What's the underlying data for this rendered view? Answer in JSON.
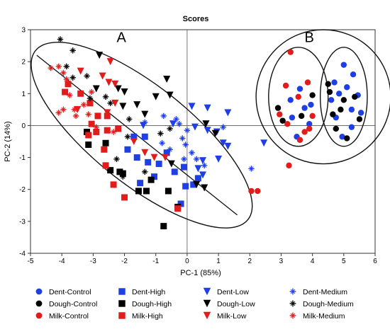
{
  "chart_data": {
    "type": "scatter",
    "title": "Scores",
    "xlabel": "PC-1 (85%)",
    "ylabel": "PC-2 (14%)",
    "xlim": [
      -5,
      6
    ],
    "ylim": [
      -4,
      3
    ],
    "xticks": [
      -5,
      -4,
      -3,
      -2,
      -1,
      0,
      1,
      2,
      3,
      4,
      5,
      6
    ],
    "yticks": [
      -4,
      -3,
      -2,
      -1,
      0,
      1,
      2,
      3
    ],
    "grid": false,
    "legend_position": "bottom",
    "colors": {
      "Dent": "#1f3fe6",
      "Dough": "#000000",
      "Milk": "#e21b1b"
    },
    "marker_shapes": {
      "Control": "circle",
      "High": "square",
      "Low": "triangle-down",
      "Medium": "star"
    },
    "panel_labels": [
      {
        "text": "A",
        "x": -2.1,
        "y": 2.75
      },
      {
        "text": "B",
        "x": 3.9,
        "y": 2.75
      }
    ],
    "ellipses": [
      {
        "name": "A",
        "cx": -1.45,
        "cy": -0.3,
        "rx": 4.3,
        "ry": 1.55,
        "angle_deg": -38
      },
      {
        "name": "B-outer",
        "cx": 4.35,
        "cy": 0.9,
        "rx": 2.15,
        "ry": 2.1,
        "angle_deg": 0
      },
      {
        "name": "B-left",
        "cx": 3.55,
        "cy": 0.9,
        "rx": 0.95,
        "ry": 1.55,
        "angle_deg": 0
      },
      {
        "name": "B-right",
        "cx": 5.0,
        "cy": 0.9,
        "rx": 0.75,
        "ry": 1.55,
        "angle_deg": 0
      }
    ],
    "series": [
      {
        "name": "Dent-Control",
        "group": "Dent",
        "shape": "circle",
        "points": [
          [
            3.3,
            0.8
          ],
          [
            3.6,
            1.15
          ],
          [
            3.35,
            0.25
          ],
          [
            3.75,
            0.55
          ],
          [
            3.95,
            0.65
          ],
          [
            3.9,
            0.05
          ],
          [
            3.5,
            -0.35
          ],
          [
            4.6,
            0.8
          ],
          [
            4.7,
            1.35
          ],
          [
            4.85,
            1.0
          ],
          [
            5.0,
            1.9
          ],
          [
            5.1,
            1.2
          ],
          [
            5.25,
            0.5
          ],
          [
            5.3,
            1.6
          ],
          [
            5.45,
            0.95
          ],
          [
            5.55,
            0.4
          ],
          [
            4.75,
            0.25
          ],
          [
            4.95,
            -0.35
          ],
          [
            5.25,
            -0.05
          ]
        ]
      },
      {
        "name": "Dough-Control",
        "group": "Dough",
        "shape": "circle",
        "points": [
          [
            2.9,
            0.55
          ],
          [
            3.05,
            0.15
          ],
          [
            3.65,
            0.3
          ],
          [
            4.0,
            0.95
          ],
          [
            4.5,
            1.3
          ],
          [
            4.65,
            0.35
          ],
          [
            4.75,
            -0.1
          ],
          [
            4.9,
            0.5
          ],
          [
            5.1,
            -0.4
          ],
          [
            5.35,
            0.9
          ],
          [
            5.5,
            0.2
          ],
          [
            5.0,
            0.8
          ],
          [
            4.55,
            1.05
          ]
        ]
      },
      {
        "name": "Milk-Control",
        "group": "Milk",
        "shape": "circle",
        "points": [
          [
            3.3,
            2.3
          ],
          [
            3.15,
            1.25
          ],
          [
            3.85,
            1.35
          ],
          [
            3.55,
            0.9
          ],
          [
            2.95,
            0.35
          ],
          [
            3.2,
            0.05
          ],
          [
            3.6,
            -0.45
          ],
          [
            4.0,
            0.3
          ],
          [
            3.9,
            -0.1
          ],
          [
            3.75,
            -0.2
          ],
          [
            2.05,
            -2.05
          ],
          [
            2.25,
            -2.05
          ],
          [
            3.25,
            -1.25
          ]
        ]
      },
      {
        "name": "Dent-High",
        "group": "Dent",
        "shape": "square",
        "points": [
          [
            -1.7,
            -0.35
          ],
          [
            -1.9,
            -0.75
          ],
          [
            -1.6,
            -1.0
          ],
          [
            -1.25,
            -1.15
          ],
          [
            -0.9,
            -1.2
          ],
          [
            -0.65,
            -0.85
          ],
          [
            -0.4,
            -1.45
          ],
          [
            -1.05,
            -1.6
          ],
          [
            -1.5,
            -1.8
          ],
          [
            -0.2,
            -2.45
          ],
          [
            -0.05,
            -1.9
          ],
          [
            0.2,
            -1.85
          ],
          [
            0.35,
            -1.65
          ],
          [
            -1.35,
            -0.35
          ],
          [
            -0.1,
            -1.3
          ]
        ]
      },
      {
        "name": "Dough-High",
        "group": "Dough",
        "shape": "square",
        "points": [
          [
            -3.15,
            -0.6
          ],
          [
            -3.2,
            -0.2
          ],
          [
            -2.45,
            -1.4
          ],
          [
            -2.15,
            -1.45
          ],
          [
            -2.05,
            -1.5
          ],
          [
            -1.55,
            -2.05
          ],
          [
            -1.3,
            -2.05
          ],
          [
            -1.15,
            -1.7
          ],
          [
            -0.6,
            -2.05
          ],
          [
            -0.75,
            -3.15
          ],
          [
            -0.3,
            -2.55
          ],
          [
            -2.6,
            -0.55
          ]
        ]
      },
      {
        "name": "Milk-High",
        "group": "Milk",
        "shape": "square",
        "points": [
          [
            -3.8,
            1.3
          ],
          [
            -3.9,
            1.05
          ],
          [
            -3.4,
            1.0
          ],
          [
            -3.1,
            0.7
          ],
          [
            -2.85,
            0.3
          ],
          [
            -3.05,
            0.05
          ],
          [
            -2.9,
            -0.2
          ],
          [
            -2.55,
            -0.15
          ],
          [
            -2.65,
            -0.75
          ],
          [
            -2.6,
            -1.25
          ],
          [
            -2.35,
            -1.85
          ],
          [
            -2.0,
            -2.25
          ],
          [
            -2.2,
            -0.1
          ],
          [
            -0.3,
            -2.6
          ],
          [
            -3.15,
            -0.3
          ],
          [
            -2.55,
            0.3
          ]
        ]
      },
      {
        "name": "Dent-Low",
        "group": "Dent",
        "shape": "triangle-down",
        "points": [
          [
            0.15,
            0.6
          ],
          [
            0.65,
            0.55
          ],
          [
            1.3,
            0.4
          ],
          [
            -0.45,
            0.05
          ],
          [
            0.25,
            -0.05
          ],
          [
            0.65,
            -0.15
          ],
          [
            0.95,
            -0.2
          ],
          [
            1.15,
            -0.55
          ],
          [
            1.3,
            -0.65
          ],
          [
            1.0,
            -1.05
          ],
          [
            0.5,
            -1.1
          ],
          [
            0.35,
            -1.35
          ],
          [
            0.5,
            -1.55
          ],
          [
            2.45,
            -0.55
          ],
          [
            -1.4,
            0.0
          ]
        ]
      },
      {
        "name": "Dough-Low",
        "group": "Dough",
        "shape": "triangle-down",
        "points": [
          [
            -2.8,
            2.2
          ],
          [
            -2.9,
            1.15
          ],
          [
            -2.2,
            1.15
          ],
          [
            -2.0,
            1.05
          ],
          [
            -2.05,
            0.6
          ],
          [
            -1.6,
            0.65
          ],
          [
            -1.35,
            0.35
          ],
          [
            -1.0,
            0.9
          ],
          [
            -0.65,
            1.45
          ],
          [
            -0.55,
            0.95
          ],
          [
            0.6,
            0.05
          ],
          [
            0.9,
            -0.25
          ],
          [
            0.3,
            -1.85
          ],
          [
            0.55,
            -1.95
          ],
          [
            -0.5,
            -1.2
          ]
        ]
      },
      {
        "name": "Milk-Low",
        "group": "Milk",
        "shape": "triangle-down",
        "points": [
          [
            -3.4,
            1.7
          ],
          [
            -2.45,
            2.0
          ],
          [
            -2.7,
            1.55
          ],
          [
            -2.3,
            1.3
          ],
          [
            -2.3,
            0.7
          ],
          [
            -2.55,
            0.4
          ],
          [
            -1.7,
            -0.5
          ],
          [
            -1.35,
            -0.85
          ],
          [
            -1.05,
            -1.0
          ],
          [
            -0.7,
            -1.0
          ],
          [
            -3.5,
            0.5
          ],
          [
            -2.5,
            1.35
          ]
        ]
      },
      {
        "name": "Dent-Medium",
        "group": "Dent",
        "shape": "star",
        "points": [
          [
            -0.75,
            0.3
          ],
          [
            -0.35,
            0.2
          ],
          [
            -0.25,
            0.05
          ],
          [
            -0.15,
            -0.4
          ],
          [
            -0.05,
            -0.6
          ],
          [
            -0.1,
            -1.05
          ],
          [
            0.15,
            -0.85
          ],
          [
            0.3,
            -1.05
          ],
          [
            0.55,
            -1.25
          ],
          [
            -0.55,
            -0.75
          ],
          [
            -0.8,
            -0.55
          ],
          [
            0.0,
            -0.15
          ],
          [
            1.15,
            -0.05
          ],
          [
            2.05,
            -1.35
          ],
          [
            -1.35,
            0.1
          ]
        ]
      },
      {
        "name": "Dough-Medium",
        "group": "Dough",
        "shape": "star",
        "points": [
          [
            -4.05,
            2.7
          ],
          [
            -3.65,
            2.35
          ],
          [
            -3.85,
            1.85
          ],
          [
            -3.2,
            1.55
          ],
          [
            -3.1,
            0.85
          ],
          [
            -2.6,
            0.9
          ],
          [
            -2.45,
            0.7
          ],
          [
            -1.85,
            0.2
          ],
          [
            -1.9,
            -0.35
          ],
          [
            -2.05,
            -1.6
          ],
          [
            -1.35,
            -1.45
          ],
          [
            -0.85,
            -0.25
          ],
          [
            -0.55,
            -0.1
          ],
          [
            -3.65,
            1.5
          ],
          [
            -2.25,
            -1.05
          ]
        ]
      },
      {
        "name": "Milk-Medium",
        "group": "Milk",
        "shape": "star",
        "points": [
          [
            -4.35,
            1.8
          ],
          [
            -4.1,
            1.85
          ],
          [
            -3.95,
            1.65
          ],
          [
            -3.85,
            1.45
          ],
          [
            -3.75,
            0.95
          ],
          [
            -3.6,
            0.5
          ],
          [
            -3.95,
            0.5
          ],
          [
            -3.3,
            0.65
          ],
          [
            -3.15,
            0.35
          ],
          [
            -2.9,
            -0.05
          ],
          [
            -2.35,
            -0.2
          ],
          [
            -3.55,
            0.3
          ],
          [
            -4.1,
            0.4
          ],
          [
            -3.05,
            1.05
          ]
        ]
      }
    ]
  }
}
